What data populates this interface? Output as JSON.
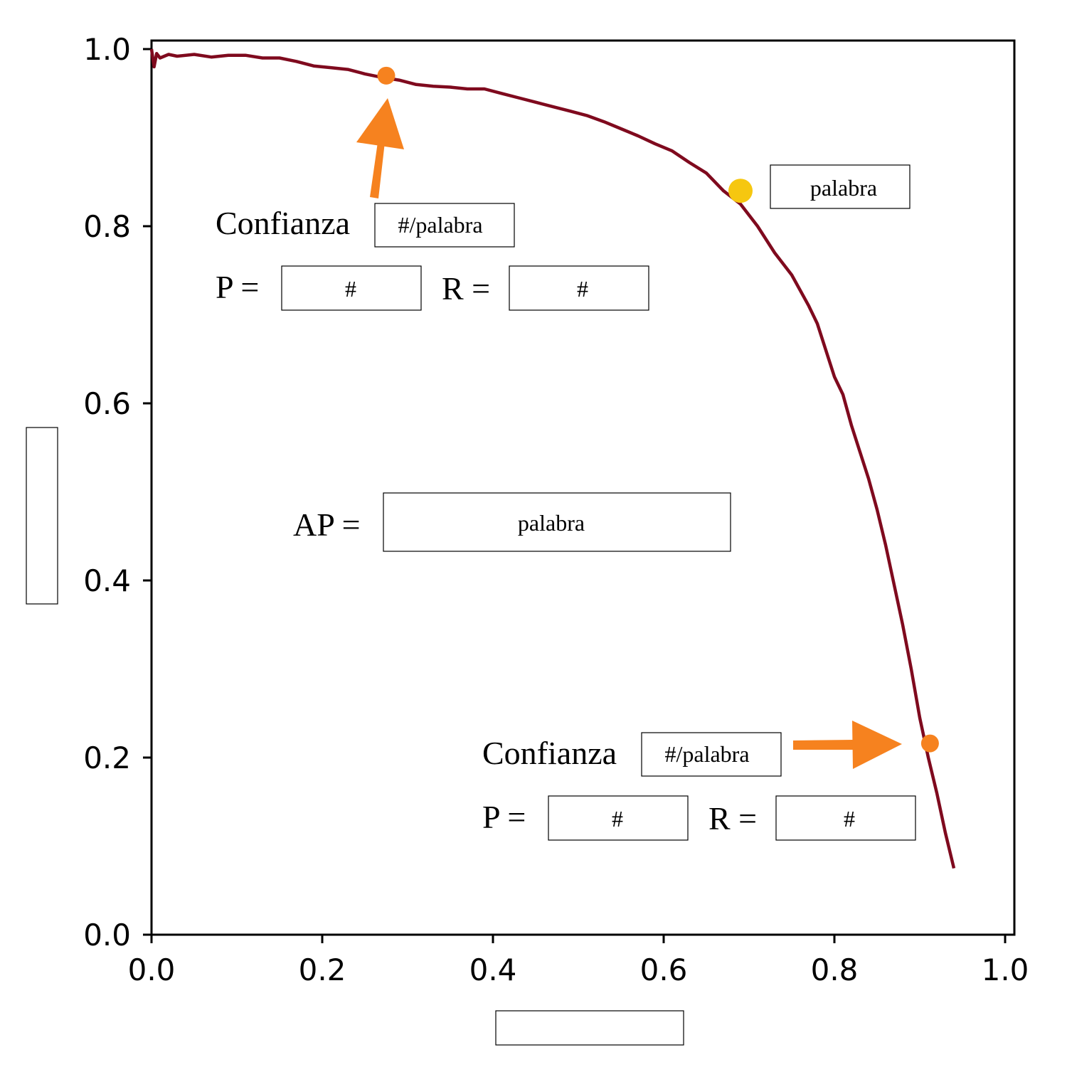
{
  "chart_data": {
    "type": "line",
    "title": "",
    "xlabel": "",
    "ylabel": "",
    "xlim": [
      0,
      1
    ],
    "ylim": [
      0,
      1
    ],
    "x_ticks": [
      "0.0",
      "0.2",
      "0.4",
      "0.6",
      "0.8",
      "1.0"
    ],
    "y_ticks": [
      "0.0",
      "0.2",
      "0.4",
      "0.6",
      "0.8",
      "1.0"
    ],
    "grid": false,
    "series": [
      {
        "color": "#7f0a1e",
        "x": [
          0.0,
          0.003,
          0.006,
          0.01,
          0.02,
          0.03,
          0.05,
          0.07,
          0.09,
          0.11,
          0.13,
          0.15,
          0.17,
          0.19,
          0.21,
          0.23,
          0.25,
          0.27,
          0.29,
          0.31,
          0.33,
          0.35,
          0.37,
          0.39,
          0.41,
          0.43,
          0.45,
          0.47,
          0.49,
          0.51,
          0.53,
          0.55,
          0.57,
          0.59,
          0.61,
          0.63,
          0.65,
          0.67,
          0.69,
          0.71,
          0.73,
          0.75,
          0.77,
          0.78,
          0.79,
          0.8,
          0.81,
          0.82,
          0.83,
          0.84,
          0.85,
          0.86,
          0.87,
          0.88,
          0.89,
          0.9,
          0.91,
          0.92,
          0.93,
          0.94
        ],
        "y": [
          1.0,
          0.98,
          0.995,
          0.99,
          0.994,
          0.992,
          0.994,
          0.991,
          0.993,
          0.993,
          0.99,
          0.99,
          0.986,
          0.981,
          0.979,
          0.977,
          0.972,
          0.968,
          0.965,
          0.96,
          0.958,
          0.957,
          0.955,
          0.955,
          0.95,
          0.945,
          0.94,
          0.935,
          0.93,
          0.925,
          0.918,
          0.91,
          0.902,
          0.893,
          0.885,
          0.872,
          0.86,
          0.84,
          0.825,
          0.8,
          0.77,
          0.745,
          0.71,
          0.69,
          0.66,
          0.63,
          0.61,
          0.575,
          0.545,
          0.515,
          0.48,
          0.44,
          0.395,
          0.35,
          0.3,
          0.245,
          0.2,
          0.16,
          0.115,
          0.075
        ]
      }
    ],
    "markers": [
      {
        "x": 0.275,
        "y": 0.97,
        "color": "#f6821f"
      },
      {
        "x": 0.69,
        "y": 0.84,
        "color": "#f6c710"
      },
      {
        "x": 0.912,
        "y": 0.216,
        "color": "#f6821f"
      }
    ]
  },
  "annotations": {
    "upper": {
      "confianza_label": "Confianza",
      "confianza_value": "#/palabra",
      "p_label": "P =",
      "p_value": "#",
      "r_label": "R =",
      "r_value": "#"
    },
    "lower": {
      "confianza_label": "Confianza",
      "confianza_value": "#/palabra",
      "p_label": "P =",
      "p_value": "#",
      "r_label": "R =",
      "r_value": "#"
    },
    "yellow_box": "palabra",
    "ap_label": "AP =",
    "ap_value": "palabra",
    "arrow_color": "#f6821f"
  }
}
